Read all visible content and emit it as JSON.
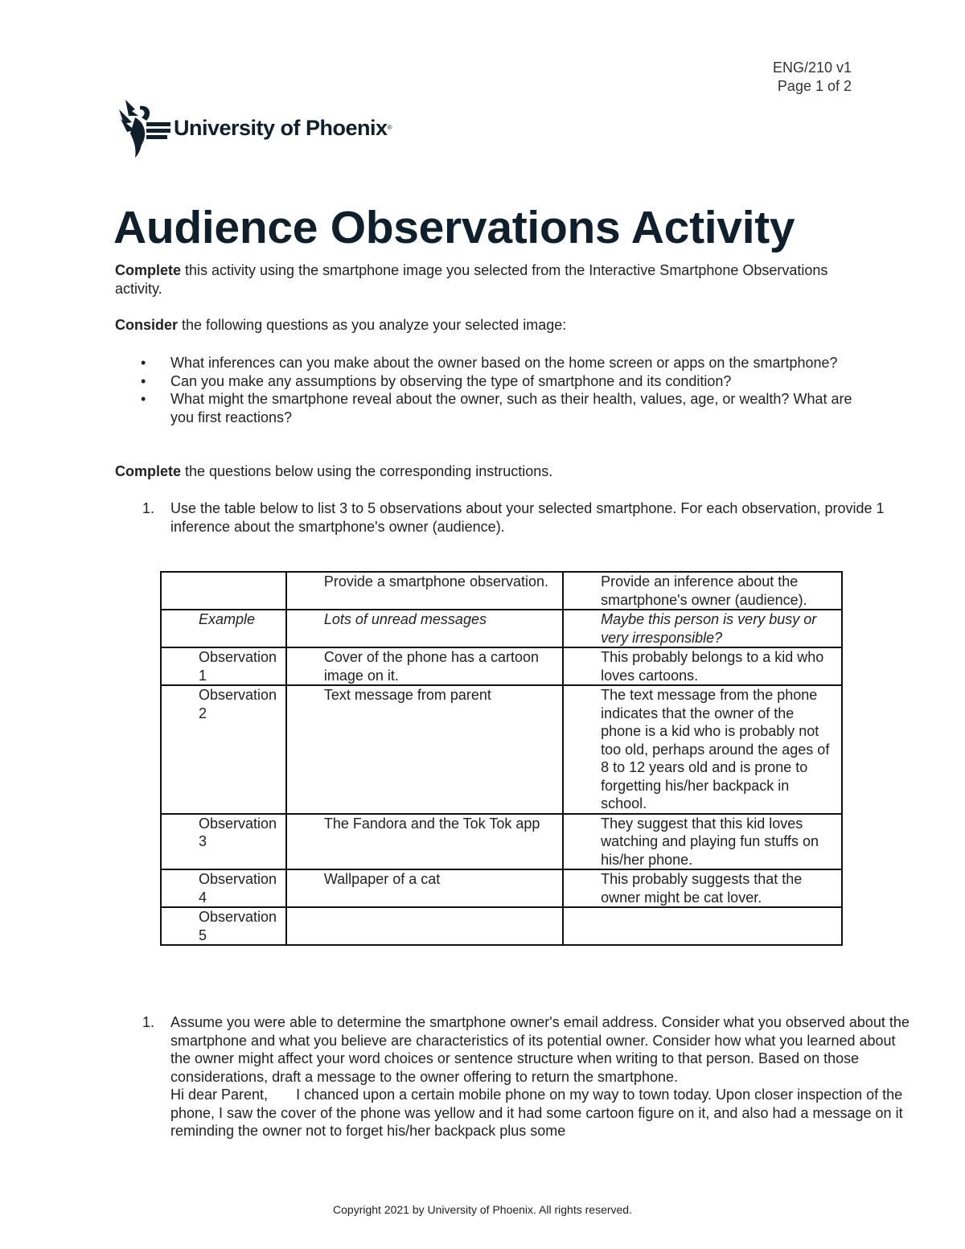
{
  "header": {
    "course": "ENG/210 v1",
    "page": "Page 1 of 2"
  },
  "logo": {
    "text": "University of Phoenix",
    "mark": "®"
  },
  "title": "Audience Observations Activity",
  "intro": {
    "bold": "Complete",
    "text": " this activity using the smartphone image you selected from the Interactive Smartphone Observations activity."
  },
  "consider": {
    "bold": "Consider",
    "text": " the following questions as you analyze your selected image:"
  },
  "bullets": [
    "What inferences can you make about the owner based on the home screen or apps on the smartphone?",
    "Can you make any assumptions by observing the type of smartphone and its condition?",
    "What might the smartphone reveal about the owner, such as their health, values, age, or wealth? What are you first reactions?"
  ],
  "complete2": {
    "bold": "Complete",
    "text": " the questions below using the corresponding instructions."
  },
  "q1": {
    "num": "1.",
    "text": "Use the table below to list 3 to 5 observations about your selected smartphone. For each observation, provide 1 inference about the smartphone's owner (audience)."
  },
  "table": {
    "headers": [
      "",
      "Provide a smartphone observation.",
      "Provide an inference about the smartphone's owner (audience)."
    ],
    "rows": [
      [
        "Example",
        "Lots of unread messages",
        "Maybe this person is very busy or very irresponsible?"
      ],
      [
        "Observation 1",
        "Cover of the phone has a cartoon image on it.",
        "This probably belongs to a kid who loves cartoons."
      ],
      [
        "Observation 2",
        "Text message from parent",
        "The text message from the phone indicates that the owner of the phone is a kid who is probably not too old, perhaps around the ages of 8 to 12 years old and is prone to forgetting his/her backpack in school."
      ],
      [
        "Observation 3",
        "The Fandora and the Tok Tok app",
        "They suggest that this kid loves watching and playing fun stuffs on his/her phone."
      ],
      [
        "Observation 4",
        "Wallpaper of a cat",
        "This probably suggests that the owner might be cat lover."
      ],
      [
        "Observation 5",
        "",
        ""
      ]
    ]
  },
  "q2": {
    "num": "1.",
    "text": "Assume you were able to determine the smartphone owner's email address. Consider what you observed about the smartphone and what you believe are characteristics of its potential owner. Consider how what you learned about the owner might affect your word choices or sentence structure when writing to that person. Based on those considerations, draft a message to the owner offering to return the smartphone.",
    "answer": "Hi dear Parent,       I chanced upon a certain mobile phone on my way to town today. Upon closer inspection of the phone, I saw the cover of the phone was yellow and it had some cartoon figure on it, and also had a message on it reminding the owner not to forget his/her backpack plus some"
  },
  "footer": "Copyright 2021 by University of Phoenix. All rights reserved."
}
